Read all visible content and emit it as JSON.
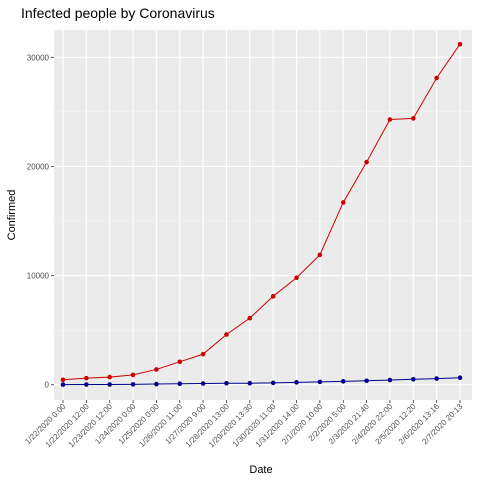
{
  "chart_data": {
    "type": "line",
    "title": "Infected people by Coronavirus",
    "xlabel": "Date",
    "ylabel": "Confirmed",
    "ylim": [
      -1400,
      32500
    ],
    "yticks": [
      0,
      10000,
      20000,
      30000
    ],
    "grid": true,
    "legend": "none",
    "categories": [
      "1/22/2020 0:00",
      "1/22/2020 12:00",
      "1/23/2020 12:00",
      "1/24/2020 0:00",
      "1/25/2020 0:00",
      "1/26/2020 11:00",
      "1/27/2020 9:00",
      "1/28/2020 13:00",
      "1/29/2020 13:30",
      "1/30/2020 11:00",
      "1/31/2020 14:00",
      "2/1/2020 10:00",
      "2/2/2020 5:00",
      "2/3/2020 21:40",
      "2/4/2020 22:00",
      "2/5/2020 12:20",
      "2/6/2020 13:16",
      "2/7/2020 20:13"
    ],
    "series": [
      {
        "color": "#cc0000",
        "values": [
          450,
          600,
          700,
          900,
          1400,
          2100,
          2800,
          4600,
          6100,
          8100,
          9800,
          11900,
          16700,
          20400,
          24300,
          24400,
          28100,
          31200
        ]
      },
      {
        "color": "#00008b",
        "values": [
          10,
          20,
          20,
          30,
          60,
          90,
          110,
          130,
          140,
          170,
          220,
          260,
          310,
          360,
          430,
          500,
          560,
          640
        ]
      }
    ]
  }
}
